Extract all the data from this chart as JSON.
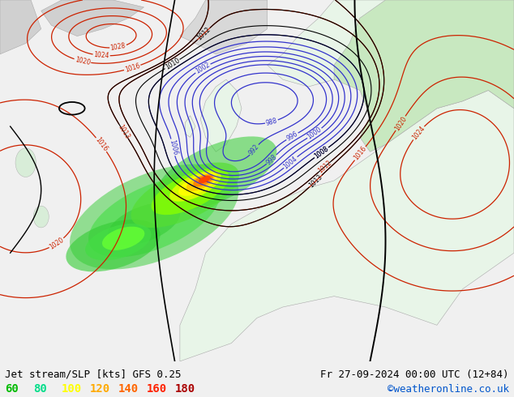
{
  "title_left": "Jet stream/SLP [kts] GFS 0.25",
  "title_right": "Fr 27-09-2024 00:00 UTC (12+84)",
  "credit": "©weatheronline.co.uk",
  "legend_values": [
    "60",
    "80",
    "100",
    "120",
    "140",
    "160",
    "180"
  ],
  "legend_colors": [
    "#00bb00",
    "#00dd88",
    "#ffff00",
    "#ffaa00",
    "#ff6600",
    "#ff2200",
    "#aa0000"
  ],
  "bg_land": "#e8f5e8",
  "bg_ocean": "#f0f0f0",
  "blue_contour_color": "#3333cc",
  "red_contour_color": "#cc2200",
  "black_contour_color": "#000000",
  "fig_width": 6.34,
  "fig_height": 4.9,
  "dpi": 100,
  "font_size_title": 9,
  "font_size_legend": 10,
  "font_size_credit": 9
}
